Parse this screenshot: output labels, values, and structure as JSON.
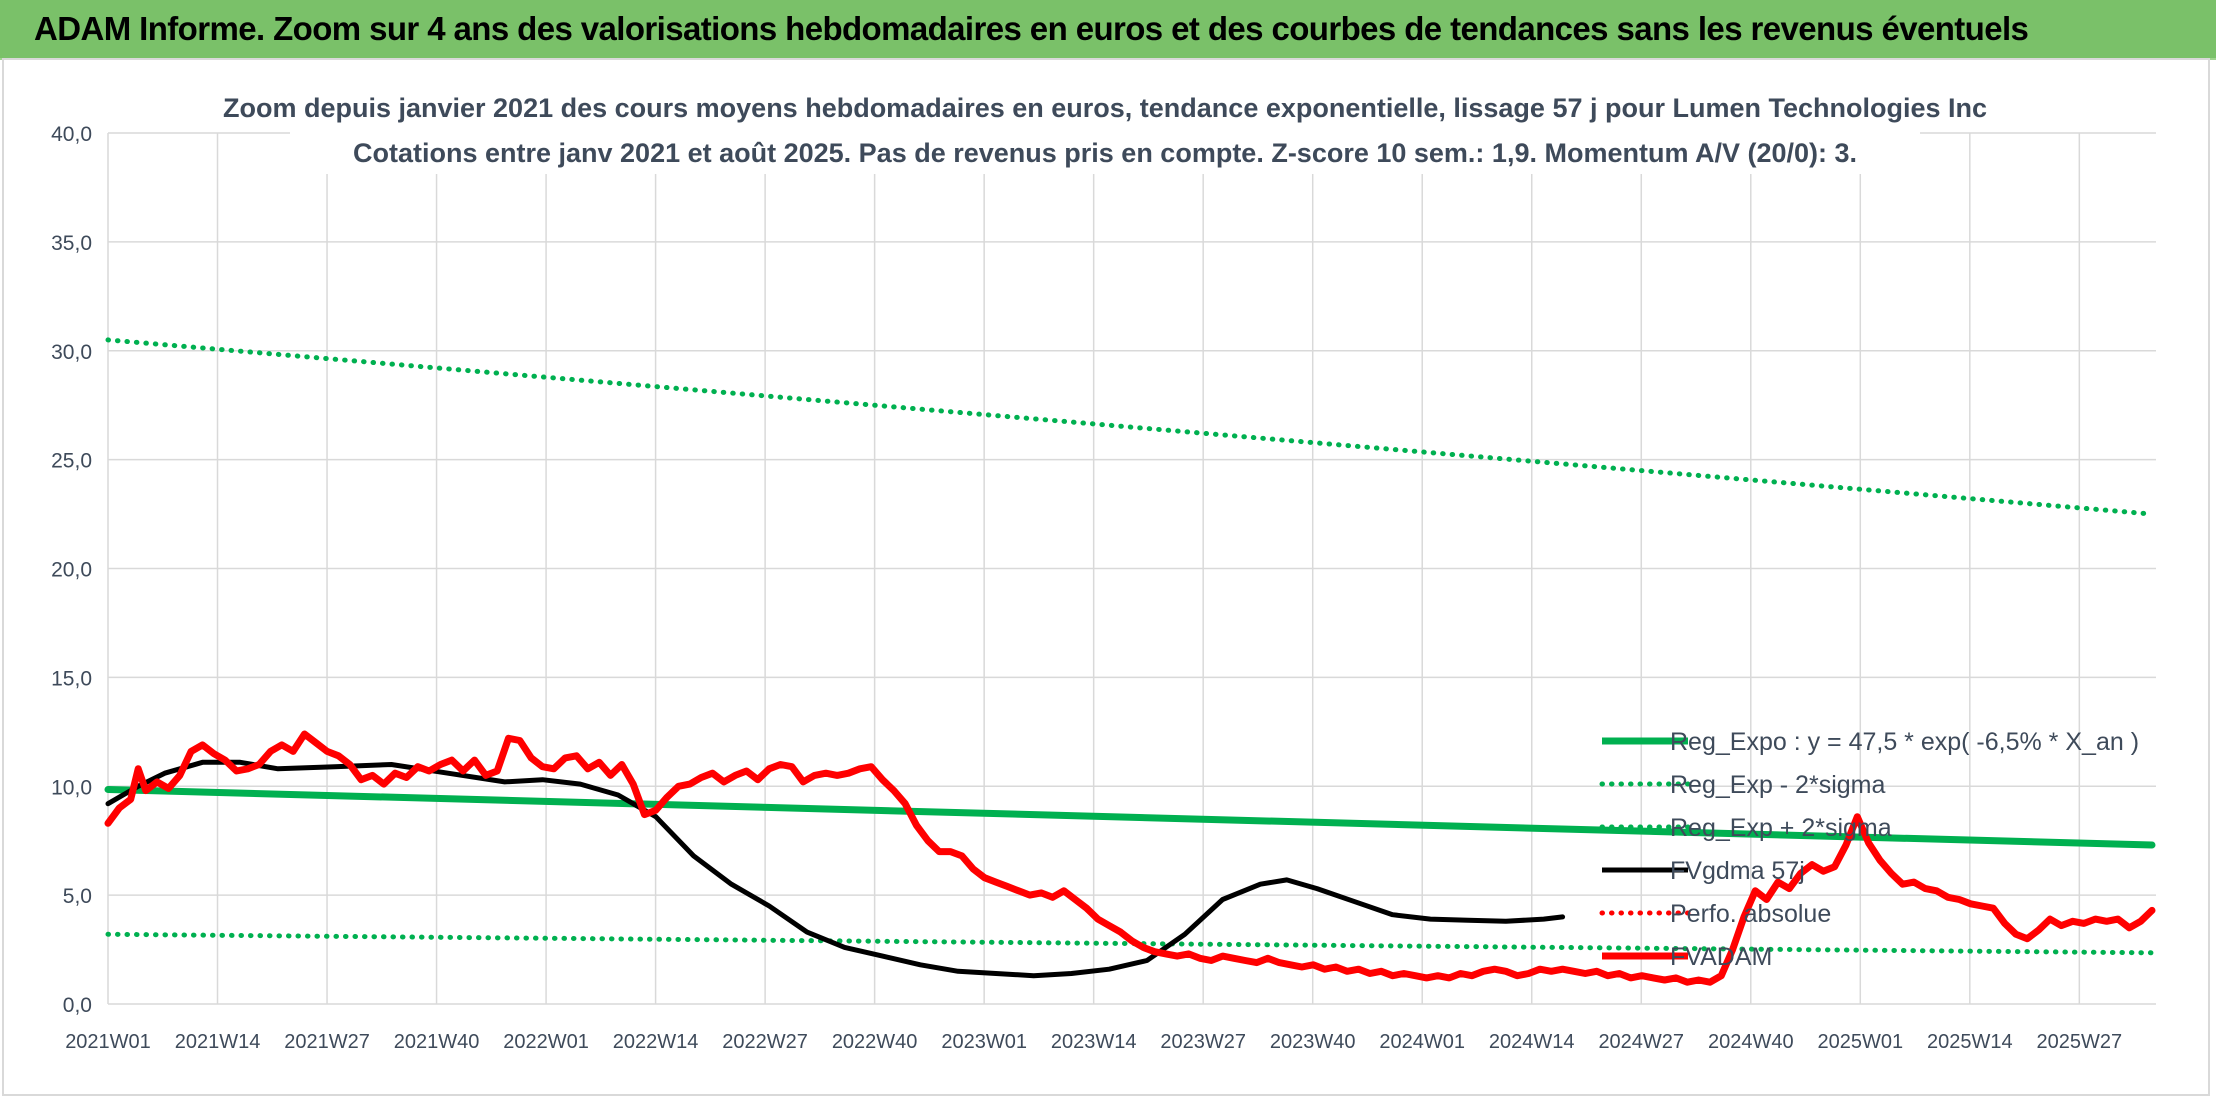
{
  "banner": {
    "title": "ADAM Informe. Zoom sur 4 ans des valorisations hebdomadaires en euros et des courbes de tendances sans les revenus éventuels"
  },
  "colors": {
    "banner_bg": "#7ac169",
    "trend_green": "#00b050",
    "price_red": "#ff0000",
    "smooth_black": "#000000",
    "text": "#3e4a5a",
    "grid": "#d9d9d9"
  },
  "chart_data": {
    "type": "line",
    "title": "Zoom depuis janvier 2021 des cours moyens hebdomadaires en euros, tendance exponentielle, lissage 57 j pour Lumen Technologies Inc",
    "subtitle": "Cotations entre janv 2021 et août 2025. Pas de revenus pris en compte. Z-score 10 sem.: 1,9. Momentum A/V (20/0): 3.",
    "xlabel": "",
    "ylabel": "",
    "ylim": [
      0,
      40
    ],
    "yticks": [
      "0,0",
      "5,0",
      "10,0",
      "15,0",
      "20,0",
      "25,0",
      "30,0",
      "35,0",
      "40,0"
    ],
    "xticks": [
      "2021W01",
      "2021W14",
      "2021W27",
      "2021W40",
      "2022W01",
      "2022W14",
      "2022W27",
      "2022W40",
      "2023W01",
      "2023W14",
      "2023W27",
      "2023W40",
      "2024W01",
      "2024W14",
      "2024W27",
      "2024W40",
      "2025W01",
      "2025W14",
      "2025W27"
    ],
    "week_count": 246,
    "grid": true,
    "legend_position": "right, inside plot",
    "series": [
      {
        "name": "Reg_Expo : y = 47,5 * exp( -6,5% *  X_an )",
        "style": "solid-thick",
        "color": "#00b050",
        "points": [
          [
            0,
            9.85
          ],
          [
            245,
            7.3
          ]
        ]
      },
      {
        "name": "Reg_Exp - 2*sigma",
        "style": "dotted",
        "color": "#00b050",
        "points": [
          [
            0,
            3.2
          ],
          [
            245,
            2.35
          ]
        ]
      },
      {
        "name": "Reg_Exp + 2*sigma",
        "style": "dotted",
        "color": "#00b050",
        "points": [
          [
            0,
            30.5
          ],
          [
            245,
            22.5
          ]
        ]
      },
      {
        "name": "FVgdma 57j",
        "style": "solid",
        "color": "#000000",
        "points": [
          [
            0,
            9.2
          ],
          [
            8,
            10.0
          ],
          [
            15,
            10.6
          ],
          [
            25,
            11.1
          ],
          [
            35,
            11.1
          ],
          [
            45,
            10.8
          ],
          [
            60,
            10.9
          ],
          [
            75,
            11.0
          ],
          [
            90,
            10.6
          ],
          [
            105,
            10.2
          ],
          [
            115,
            10.3
          ],
          [
            125,
            10.1
          ],
          [
            135,
            9.6
          ],
          [
            145,
            8.6
          ],
          [
            155,
            6.8
          ],
          [
            165,
            5.5
          ],
          [
            175,
            4.5
          ],
          [
            185,
            3.3
          ],
          [
            195,
            2.6
          ],
          [
            205,
            2.2
          ],
          [
            215,
            1.8
          ],
          [
            225,
            1.5
          ],
          [
            235,
            1.4
          ],
          [
            245,
            1.3
          ],
          [
            255,
            1.4
          ],
          [
            265,
            1.6
          ],
          [
            275,
            2.0
          ],
          [
            285,
            3.2
          ],
          [
            295,
            4.8
          ],
          [
            305,
            5.5
          ],
          [
            312,
            5.7
          ],
          [
            320,
            5.3
          ],
          [
            330,
            4.7
          ],
          [
            340,
            4.1
          ],
          [
            350,
            3.9
          ],
          [
            360,
            3.85
          ],
          [
            370,
            3.8
          ],
          [
            380,
            3.9
          ],
          [
            385,
            4.0
          ]
        ]
      },
      {
        "name": "Perfo. absolue",
        "style": "dotted",
        "color": "#ff0000",
        "points": []
      },
      {
        "name": "FVADAM",
        "style": "solid-thick",
        "color": "#ff0000",
        "points": [
          [
            0,
            8.3
          ],
          [
            3,
            9.0
          ],
          [
            6,
            9.4
          ],
          [
            8,
            10.8
          ],
          [
            10,
            9.8
          ],
          [
            13,
            10.2
          ],
          [
            16,
            9.9
          ],
          [
            19,
            10.5
          ],
          [
            22,
            11.6
          ],
          [
            25,
            11.9
          ],
          [
            28,
            11.5
          ],
          [
            31,
            11.2
          ],
          [
            34,
            10.7
          ],
          [
            37,
            10.8
          ],
          [
            40,
            11.0
          ],
          [
            43,
            11.6
          ],
          [
            46,
            11.9
          ],
          [
            49,
            11.6
          ],
          [
            52,
            12.4
          ],
          [
            55,
            12.0
          ],
          [
            58,
            11.6
          ],
          [
            61,
            11.4
          ],
          [
            64,
            11.0
          ],
          [
            67,
            10.3
          ],
          [
            70,
            10.5
          ],
          [
            73,
            10.1
          ],
          [
            76,
            10.6
          ],
          [
            79,
            10.4
          ],
          [
            82,
            10.9
          ],
          [
            85,
            10.7
          ],
          [
            88,
            11.0
          ],
          [
            91,
            11.2
          ],
          [
            94,
            10.7
          ],
          [
            97,
            11.2
          ],
          [
            100,
            10.5
          ],
          [
            103,
            10.7
          ],
          [
            106,
            12.2
          ],
          [
            109,
            12.1
          ],
          [
            112,
            11.3
          ],
          [
            115,
            10.9
          ],
          [
            118,
            10.8
          ],
          [
            121,
            11.3
          ],
          [
            124,
            11.4
          ],
          [
            127,
            10.8
          ],
          [
            130,
            11.1
          ],
          [
            133,
            10.5
          ],
          [
            136,
            11.0
          ],
          [
            139,
            10.1
          ],
          [
            142,
            8.7
          ],
          [
            145,
            8.9
          ],
          [
            148,
            9.5
          ],
          [
            151,
            10.0
          ],
          [
            154,
            10.1
          ],
          [
            157,
            10.4
          ],
          [
            160,
            10.6
          ],
          [
            163,
            10.2
          ],
          [
            166,
            10.5
          ],
          [
            169,
            10.7
          ],
          [
            172,
            10.3
          ],
          [
            175,
            10.8
          ],
          [
            178,
            11.0
          ],
          [
            181,
            10.9
          ],
          [
            184,
            10.2
          ],
          [
            187,
            10.5
          ],
          [
            190,
            10.6
          ],
          [
            193,
            10.5
          ],
          [
            196,
            10.6
          ],
          [
            199,
            10.8
          ],
          [
            202,
            10.9
          ],
          [
            205,
            10.3
          ],
          [
            208,
            9.8
          ],
          [
            211,
            9.2
          ],
          [
            214,
            8.2
          ],
          [
            217,
            7.5
          ],
          [
            220,
            7.0
          ],
          [
            223,
            7.0
          ],
          [
            226,
            6.8
          ],
          [
            229,
            6.2
          ],
          [
            232,
            5.8
          ],
          [
            235,
            5.6
          ],
          [
            238,
            5.4
          ],
          [
            241,
            5.2
          ],
          [
            244,
            5.0
          ],
          [
            247,
            5.1
          ],
          [
            250,
            4.9
          ],
          [
            253,
            5.2
          ],
          [
            256,
            4.8
          ],
          [
            259,
            4.4
          ],
          [
            262,
            3.9
          ],
          [
            265,
            3.6
          ],
          [
            268,
            3.3
          ],
          [
            271,
            2.9
          ],
          [
            274,
            2.6
          ],
          [
            277,
            2.4
          ],
          [
            280,
            2.3
          ],
          [
            283,
            2.2
          ],
          [
            286,
            2.3
          ],
          [
            289,
            2.1
          ],
          [
            292,
            2.0
          ],
          [
            295,
            2.2
          ],
          [
            298,
            2.1
          ],
          [
            301,
            2.0
          ],
          [
            304,
            1.9
          ],
          [
            307,
            2.1
          ],
          [
            310,
            1.9
          ],
          [
            313,
            1.8
          ],
          [
            316,
            1.7
          ],
          [
            319,
            1.8
          ],
          [
            322,
            1.6
          ],
          [
            325,
            1.7
          ],
          [
            328,
            1.5
          ],
          [
            331,
            1.6
          ],
          [
            334,
            1.4
          ],
          [
            337,
            1.5
          ],
          [
            340,
            1.3
          ],
          [
            343,
            1.4
          ],
          [
            346,
            1.3
          ],
          [
            349,
            1.2
          ],
          [
            352,
            1.3
          ],
          [
            355,
            1.2
          ],
          [
            358,
            1.4
          ],
          [
            361,
            1.3
          ],
          [
            364,
            1.5
          ],
          [
            367,
            1.6
          ],
          [
            370,
            1.5
          ],
          [
            373,
            1.3
          ],
          [
            376,
            1.4
          ],
          [
            379,
            1.6
          ],
          [
            382,
            1.5
          ],
          [
            385,
            1.6
          ],
          [
            388,
            1.5
          ],
          [
            391,
            1.4
          ],
          [
            394,
            1.5
          ],
          [
            397,
            1.3
          ],
          [
            400,
            1.4
          ],
          [
            403,
            1.2
          ],
          [
            406,
            1.3
          ],
          [
            409,
            1.2
          ],
          [
            412,
            1.1
          ],
          [
            415,
            1.2
          ],
          [
            418,
            1.0
          ],
          [
            421,
            1.1
          ],
          [
            424,
            1.0
          ],
          [
            427,
            1.3
          ],
          [
            430,
            2.5
          ],
          [
            433,
            4.0
          ],
          [
            436,
            5.2
          ],
          [
            439,
            4.8
          ],
          [
            442,
            5.6
          ],
          [
            445,
            5.3
          ],
          [
            448,
            6.0
          ],
          [
            451,
            6.4
          ],
          [
            454,
            6.1
          ],
          [
            457,
            6.3
          ],
          [
            460,
            7.3
          ],
          [
            463,
            8.6
          ],
          [
            466,
            7.4
          ],
          [
            469,
            6.6
          ],
          [
            472,
            6.0
          ],
          [
            475,
            5.5
          ],
          [
            478,
            5.6
          ],
          [
            481,
            5.3
          ],
          [
            484,
            5.2
          ],
          [
            487,
            4.9
          ],
          [
            490,
            4.8
          ],
          [
            493,
            4.6
          ],
          [
            496,
            4.5
          ],
          [
            499,
            4.4
          ],
          [
            502,
            3.7
          ],
          [
            505,
            3.2
          ],
          [
            508,
            3.0
          ],
          [
            511,
            3.4
          ],
          [
            514,
            3.9
          ],
          [
            517,
            3.6
          ],
          [
            520,
            3.8
          ],
          [
            523,
            3.7
          ],
          [
            526,
            3.9
          ],
          [
            529,
            3.8
          ],
          [
            532,
            3.9
          ],
          [
            535,
            3.5
          ],
          [
            538,
            3.8
          ],
          [
            541,
            4.3
          ]
        ]
      }
    ]
  }
}
